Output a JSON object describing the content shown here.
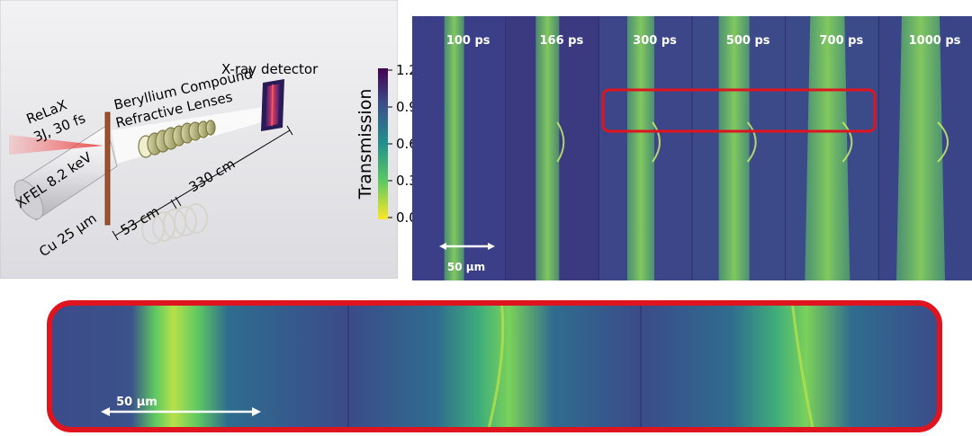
{
  "setup": {
    "laser_name": "ReLaX",
    "laser_params": "3J, 30 fs",
    "xfel_label": "XFEL 8.2 keV",
    "target_label": "Cu 25 µm",
    "lens_line1": "Beryllium Compound",
    "lens_line2": "Refractive Lenses",
    "detector_label": "X-ray detector",
    "distance_short": "53 cm",
    "distance_long": "330 cm"
  },
  "colorbar": {
    "title": "Transmission",
    "ticks": [
      "1.2",
      "0.9",
      "0.6",
      "0.3",
      "0.0"
    ],
    "colors": [
      "#440154",
      "#3b528b",
      "#21918c",
      "#5ec962",
      "#fde725"
    ]
  },
  "panels": {
    "times": [
      "100 ps",
      "166 ps",
      "300 ps",
      "500 ps",
      "700 ps",
      "1000 ps"
    ],
    "scalebar": "50 µm",
    "highlight_color": "#e0141e"
  },
  "zoom": {
    "scalebar": "50 µm",
    "border_color": "#e0141e"
  }
}
